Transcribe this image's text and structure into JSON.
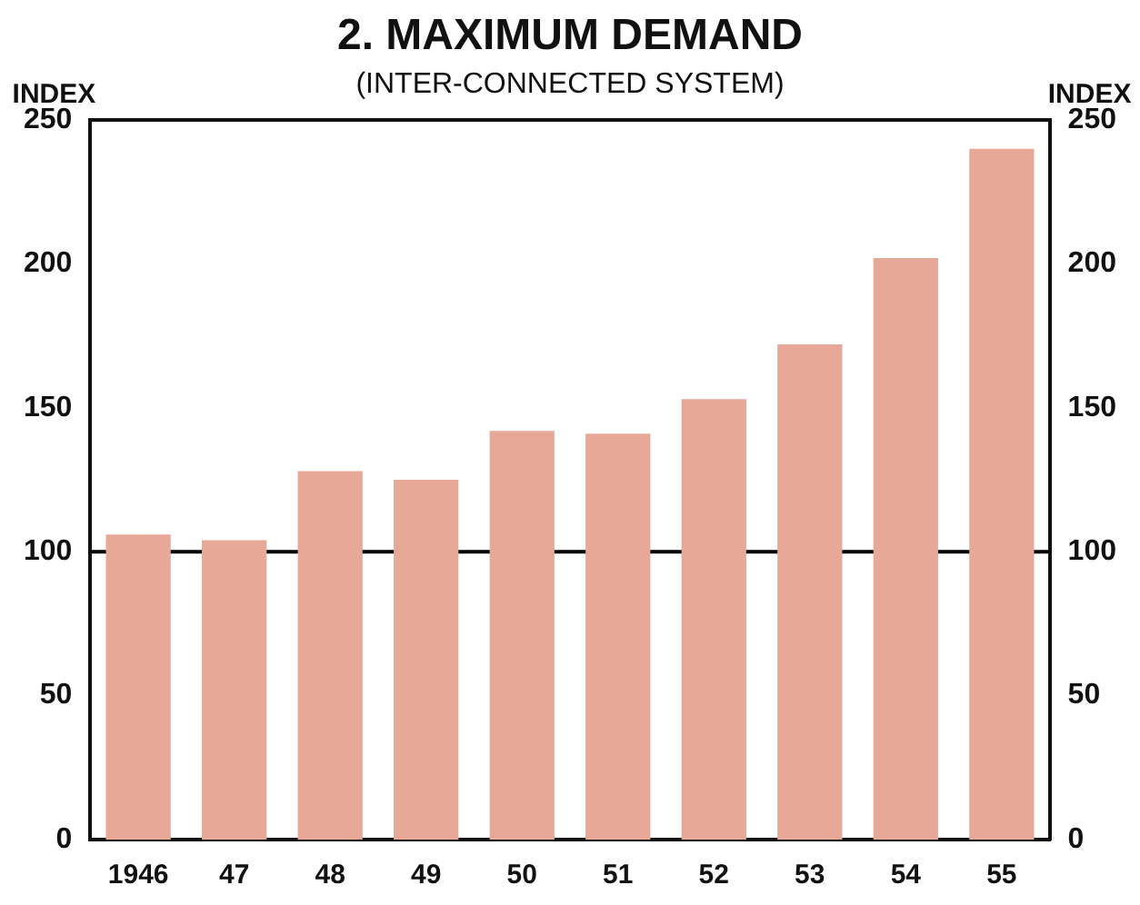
{
  "chart_data": {
    "type": "bar",
    "title": "2. MAXIMUM DEMAND",
    "subtitle": "(INTER-CONNECTED SYSTEM)",
    "ylabel": "INDEX",
    "y2label": "INDEX",
    "categories": [
      "1946",
      "47",
      "48",
      "49",
      "50",
      "51",
      "52",
      "53",
      "54",
      "55"
    ],
    "values": [
      106,
      104,
      128,
      125,
      142,
      141,
      153,
      172,
      202,
      240
    ],
    "color": "#e8a898",
    "ylim": [
      0,
      250
    ],
    "yticks": [
      0,
      50,
      100,
      150,
      200,
      250
    ],
    "y2lim": [
      0,
      250
    ],
    "y2ticks": [
      0,
      50,
      100,
      150,
      200,
      250
    ],
    "ref_lines": [
      {
        "axis": "y",
        "value": 100,
        "color": "#000000"
      }
    ],
    "grid": false,
    "legend": false
  }
}
